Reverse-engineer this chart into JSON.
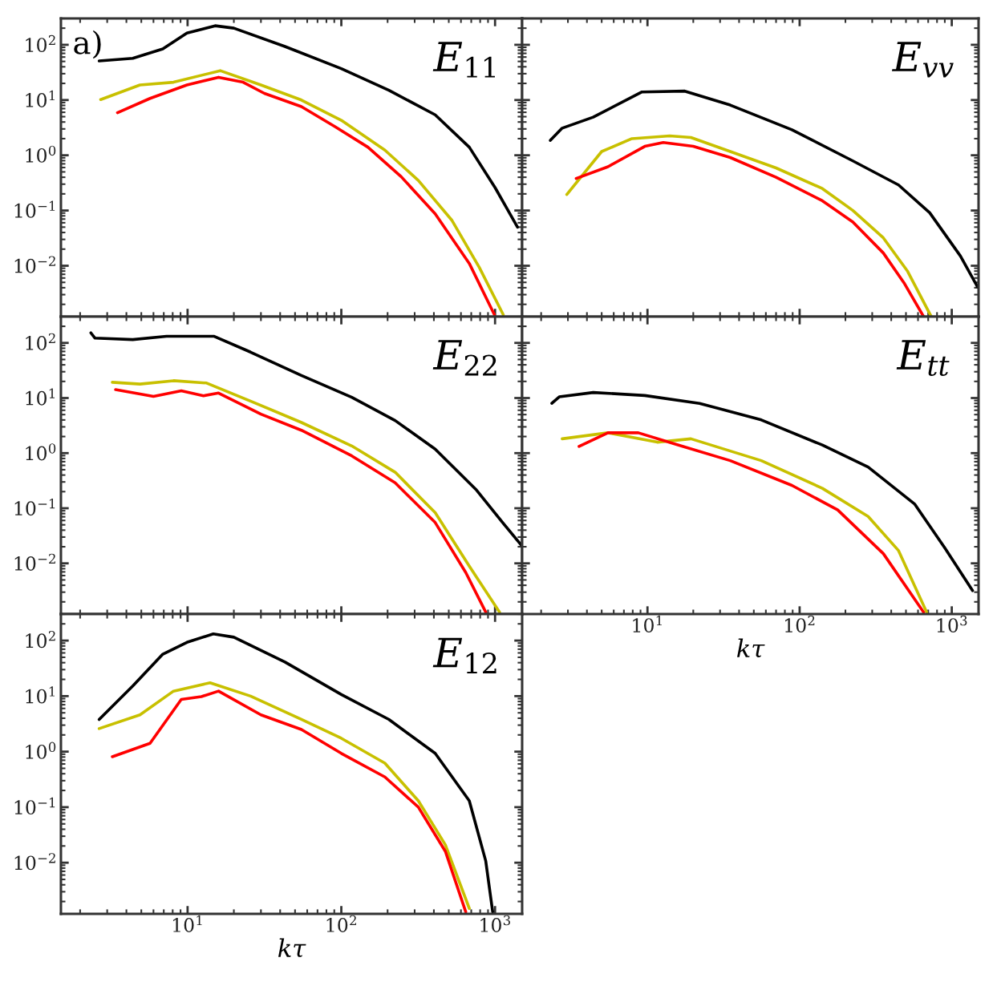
{
  "chart_data": [
    {
      "type": "line",
      "annotations": [
        "a)",
        "E$_{11}$"
      ],
      "xlim": [
        1.5,
        1500
      ],
      "ylim": [
        0.0012,
        300
      ],
      "log": "xy",
      "tick_labels": "y",
      "xticks": [
        {
          "value": 10,
          "label": null
        },
        {
          "value": 100,
          "label": null
        },
        {
          "value": 1000,
          "label": null
        }
      ],
      "yticks": [
        {
          "value": 0.01,
          "label": "10$^{−2}$"
        },
        {
          "value": 0.1,
          "label": "10$^{−1}$"
        },
        {
          "value": 1,
          "label": "10$^{0}$"
        },
        {
          "value": 10,
          "label": "10$^{1}$"
        },
        {
          "value": 100,
          "label": "10$^{2}$"
        }
      ],
      "series": [
        {
          "color": "#000000",
          "x": [
            2.66,
            4.4,
            6.9,
            9.9,
            15.1,
            20,
            43,
            100,
            204,
            408,
            680,
            1000,
            1400
          ],
          "values": [
            51,
            57,
            84,
            163,
            221,
            200,
            93,
            37,
            15,
            5.4,
            1.4,
            0.26,
            0.05
          ]
        },
        {
          "color": "#c8c000",
          "x": [
            2.72,
            4.9,
            8.1,
            16.3,
            30,
            55,
            100,
            192,
            317,
            525,
            790,
            1130
          ],
          "values": [
            10.2,
            18.7,
            21,
            34,
            18.7,
            10,
            4.3,
            1.24,
            0.35,
            0.066,
            0.0093,
            0.0013
          ]
        },
        {
          "color": "#ff0000",
          "x": [
            3.5,
            5.7,
            9.9,
            15.9,
            23,
            31.6,
            55,
            91,
            149,
            245,
            408,
            680,
            990
          ],
          "values": [
            5.9,
            10.7,
            18.7,
            25.8,
            21,
            13.2,
            7.6,
            3.3,
            1.4,
            0.41,
            0.087,
            0.011,
            0.0013
          ]
        }
      ]
    },
    {
      "type": "line",
      "annotations": [
        "E$_{vv}$"
      ],
      "xlim": [
        1.5,
        1500
      ],
      "ylim": [
        0.0012,
        300
      ],
      "log": "xy",
      "tick_labels": false,
      "xticks": [
        {
          "value": 10,
          "label": null
        },
        {
          "value": 100,
          "label": null
        },
        {
          "value": 1000,
          "label": null
        }
      ],
      "yticks": [
        {
          "value": 0.01,
          "label": null
        },
        {
          "value": 0.1,
          "label": null
        },
        {
          "value": 1,
          "label": null
        },
        {
          "value": 10,
          "label": null
        },
        {
          "value": 100,
          "label": null
        }
      ],
      "series": [
        {
          "color": "#000000",
          "x": [
            2.3,
            2.75,
            4.4,
            9.2,
            17.6,
            35,
            89,
            224,
            447,
            716,
            1140,
            1480
          ],
          "values": [
            1.86,
            3.1,
            4.9,
            14,
            14.5,
            8.1,
            2.9,
            0.79,
            0.29,
            0.091,
            0.015,
            0.0041
          ]
        },
        {
          "color": "#c8c000",
          "x": [
            2.95,
            5.0,
            7.9,
            14,
            19.3,
            35,
            70,
            141,
            224,
            355,
            513,
            733
          ],
          "values": [
            0.195,
            1.17,
            2.0,
            2.24,
            2.1,
            1.17,
            0.59,
            0.25,
            0.1,
            0.032,
            0.0079,
            0.0012
          ]
        },
        {
          "color": "#ff0000",
          "x": [
            3.4,
            5.5,
            9.6,
            12.7,
            20,
            35,
            70,
            141,
            224,
            355,
            490,
            653
          ],
          "values": [
            0.38,
            0.62,
            1.45,
            1.7,
            1.45,
            0.91,
            0.4,
            0.15,
            0.062,
            0.017,
            0.0047,
            0.0012
          ]
        }
      ]
    },
    {
      "type": "line",
      "annotations": [
        "E$_{22}$"
      ],
      "xlim": [
        1.5,
        1500
      ],
      "ylim": [
        0.0012,
        300
      ],
      "log": "xy",
      "tick_labels": "y",
      "xticks": [
        {
          "value": 10,
          "label": null
        },
        {
          "value": 100,
          "label": null
        },
        {
          "value": 1000,
          "label": null
        }
      ],
      "yticks": [
        {
          "value": 0.01,
          "label": "10$^{−2}$"
        },
        {
          "value": 0.1,
          "label": "10$^{−1}$"
        },
        {
          "value": 1,
          "label": "10$^{0}$"
        },
        {
          "value": 10,
          "label": "10$^{1}$"
        },
        {
          "value": 100,
          "label": "10$^{2}$"
        }
      ],
      "series": [
        {
          "color": "#000000",
          "x": [
            2.35,
            2.5,
            4.4,
            7.3,
            14.8,
            25.7,
            55,
            117,
            224,
            408,
            750,
            1120,
            1490
          ],
          "values": [
            152,
            122,
            115,
            132,
            132,
            68,
            25.6,
            10.3,
            3.9,
            1.18,
            0.22,
            0.055,
            0.021
          ]
        },
        {
          "color": "#c8c000",
          "x": [
            3.24,
            4.9,
            8.1,
            13.3,
            27,
            55,
            117,
            224,
            408,
            680,
            1070
          ],
          "values": [
            19.3,
            17.9,
            20.6,
            18.7,
            8.3,
            3.6,
            1.35,
            0.45,
            0.083,
            0.0089,
            0.0013
          ]
        },
        {
          "color": "#ff0000",
          "x": [
            3.4,
            6.0,
            9.1,
            12.7,
            15.9,
            30,
            55,
            117,
            224,
            408,
            645,
            870
          ],
          "values": [
            14.2,
            10.7,
            13.5,
            11,
            12.3,
            5.1,
            2.6,
            0.89,
            0.29,
            0.055,
            0.0068,
            0.0013
          ]
        }
      ]
    },
    {
      "type": "line",
      "annotations": [
        "E$_{tt}$"
      ],
      "xlabel": "kτ",
      "xlim": [
        1.5,
        1500
      ],
      "ylim": [
        0.0012,
        300
      ],
      "log": "xy",
      "tick_labels": "x",
      "xticks": [
        {
          "value": 10,
          "label": "10$^{1}$"
        },
        {
          "value": 100,
          "label": "10$^{2}$"
        },
        {
          "value": 1000,
          "label": "10$^{3}$"
        }
      ],
      "yticks": [
        {
          "value": 0.01,
          "label": null
        },
        {
          "value": 0.1,
          "label": null
        },
        {
          "value": 1,
          "label": null
        },
        {
          "value": 10,
          "label": null
        },
        {
          "value": 100,
          "label": null
        }
      ],
      "series": [
        {
          "color": "#000000",
          "x": [
            2.35,
            2.63,
            4.4,
            9.6,
            22,
            56,
            141,
            282,
            569,
            900,
            1370
          ],
          "values": [
            8.0,
            10.5,
            12.6,
            11.1,
            8.0,
            4.0,
            1.4,
            0.56,
            0.12,
            0.019,
            0.0032
          ]
        },
        {
          "color": "#c8c000",
          "x": [
            2.75,
            5.5,
            11.6,
            19.3,
            56,
            141,
            282,
            447,
            684
          ],
          "values": [
            1.82,
            2.34,
            1.58,
            1.82,
            0.73,
            0.23,
            0.071,
            0.017,
            0.0013
          ]
        },
        {
          "color": "#ff0000",
          "x": [
            3.55,
            5.5,
            8.7,
            16,
            35,
            89,
            178,
            355,
            653
          ],
          "values": [
            1.32,
            2.34,
            2.34,
            1.4,
            0.73,
            0.26,
            0.093,
            0.015,
            0.0013
          ]
        }
      ]
    },
    {
      "type": "line",
      "annotations": [
        "E$_{12}$"
      ],
      "xlabel": "kτ",
      "xlim": [
        1.5,
        1500
      ],
      "ylim": [
        0.0012,
        300
      ],
      "log": "xy",
      "xticks": [
        {
          "value": 10,
          "label": "10$^{1}$"
        },
        {
          "value": 100,
          "label": "10$^{2}$"
        },
        {
          "value": 1000,
          "label": "10$^{3}$"
        }
      ],
      "yticks": [
        {
          "value": 0.01,
          "label": "10$^{−2}$"
        },
        {
          "value": 0.1,
          "label": "10$^{−1}$"
        },
        {
          "value": 1,
          "label": "10$^{0}$"
        },
        {
          "value": 10,
          "label": "10$^{1}$"
        },
        {
          "value": 100,
          "label": "10$^{2}$"
        }
      ],
      "series": [
        {
          "color": "#000000",
          "x": [
            2.66,
            4.4,
            6.9,
            9.9,
            14.7,
            20,
            43,
            100,
            204,
            408,
            680,
            870,
            965
          ],
          "values": [
            3.8,
            15.2,
            57,
            93,
            132,
            115,
            41,
            10.7,
            3.8,
            0.93,
            0.13,
            0.0107,
            0.0013
          ]
        },
        {
          "color": "#c8c000",
          "x": [
            2.66,
            4.9,
            8.1,
            14,
            25.7,
            55,
            100,
            192,
            317,
            475,
            680
          ],
          "values": [
            2.6,
            4.6,
            12.3,
            17.4,
            10,
            3.8,
            1.74,
            0.62,
            0.13,
            0.021,
            0.0015
          ]
        },
        {
          "color": "#ff0000",
          "x": [
            3.24,
            5.7,
            9.1,
            12.3,
            15.9,
            30,
            55,
            100,
            192,
            317,
            475,
            645
          ],
          "values": [
            0.81,
            1.41,
            8.7,
            9.8,
            12.3,
            4.6,
            2.5,
            0.93,
            0.35,
            0.1,
            0.016,
            0.0013
          ]
        }
      ]
    }
  ]
}
